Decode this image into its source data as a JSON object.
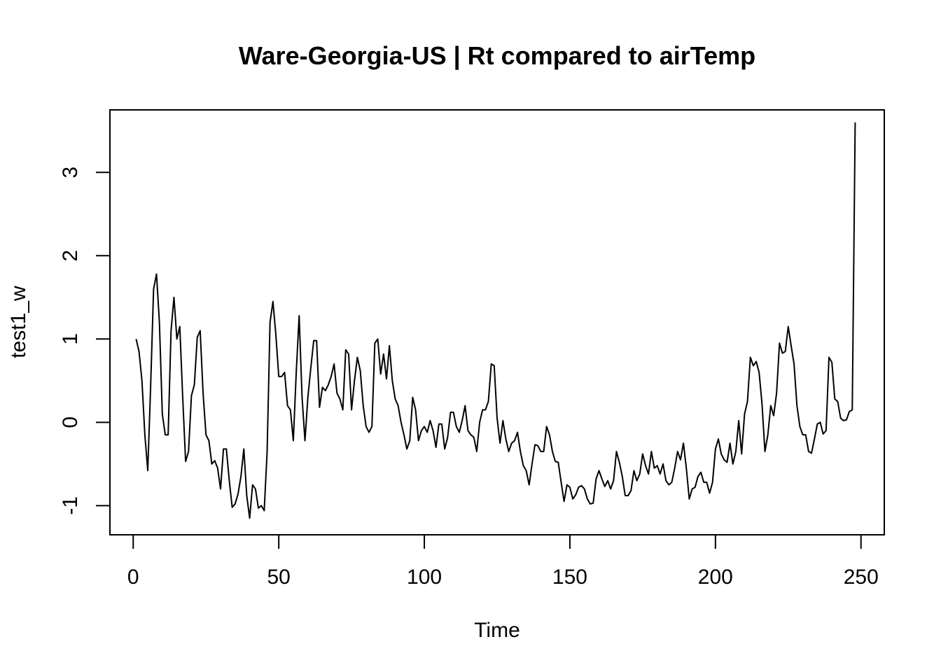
{
  "chart_data": {
    "type": "line",
    "title": "Ware-Georgia-US | Rt compared to airTemp",
    "xlabel": "Time",
    "ylabel": "test1_w",
    "xlim": [
      -8,
      258
    ],
    "ylim": [
      -1.35,
      3.75
    ],
    "x_ticks": [
      0,
      50,
      100,
      150,
      200,
      250
    ],
    "y_ticks": [
      -1,
      0,
      1,
      2,
      3
    ],
    "grid": false,
    "line_color": "#000000",
    "series": [
      {
        "x": [
          1,
          2,
          3,
          4,
          5,
          6,
          7,
          8,
          9,
          10,
          11,
          12,
          13,
          14,
          15,
          16,
          17,
          18,
          19,
          20,
          21,
          22,
          23,
          24,
          25,
          26,
          27,
          28,
          29,
          30,
          31,
          32,
          33,
          34,
          35,
          36,
          37,
          38,
          39,
          40,
          41,
          42,
          43,
          44,
          45,
          46,
          47,
          48,
          49,
          50,
          51,
          52,
          53,
          54,
          55,
          56,
          57,
          58,
          59,
          60,
          61,
          62,
          63,
          64,
          65,
          66,
          67,
          68,
          69,
          70,
          71,
          72,
          73,
          74,
          75,
          76,
          77,
          78,
          79,
          80,
          81,
          82,
          83,
          84,
          85,
          86,
          87,
          88,
          89,
          90,
          91,
          92,
          93,
          94,
          95,
          96,
          97,
          98,
          99,
          100,
          101,
          102,
          103,
          104,
          105,
          106,
          107,
          108,
          109,
          110,
          111,
          112,
          113,
          114,
          115,
          116,
          117,
          118,
          119,
          120,
          121,
          122,
          123,
          124,
          125,
          126,
          127,
          128,
          129,
          130,
          131,
          132,
          133,
          134,
          135,
          136,
          137,
          138,
          139,
          140,
          141,
          142,
          143,
          144,
          145,
          146,
          147,
          148,
          149,
          150,
          151,
          152,
          153,
          154,
          155,
          156,
          157,
          158,
          159,
          160,
          161,
          162,
          163,
          164,
          165,
          166,
          167,
          168,
          169,
          170,
          171,
          172,
          173,
          174,
          175,
          176,
          177,
          178,
          179,
          180,
          181,
          182,
          183,
          184,
          185,
          186,
          187,
          188,
          189,
          190,
          191,
          192,
          193,
          194,
          195,
          196,
          197,
          198,
          199,
          200,
          201,
          202,
          203,
          204,
          205,
          206,
          207,
          208,
          209,
          210,
          211,
          212,
          213,
          214,
          215,
          216,
          217,
          218,
          219,
          220,
          221,
          222,
          223,
          224,
          225,
          226,
          227,
          228,
          229,
          230,
          231,
          232,
          233,
          234,
          235,
          236,
          237,
          238,
          239,
          240,
          241,
          242,
          243,
          244,
          245,
          246,
          247,
          248
        ],
        "values": [
          1.0,
          0.85,
          0.5,
          -0.15,
          -0.58,
          0.45,
          1.6,
          1.78,
          1.2,
          0.1,
          -0.15,
          -0.15,
          1.1,
          1.5,
          1.0,
          1.15,
          0.3,
          -0.47,
          -0.35,
          0.32,
          0.45,
          1.02,
          1.1,
          0.35,
          -0.15,
          -0.22,
          -0.5,
          -0.46,
          -0.55,
          -0.8,
          -0.32,
          -0.32,
          -0.7,
          -1.02,
          -0.98,
          -0.86,
          -0.65,
          -0.32,
          -0.88,
          -1.15,
          -0.75,
          -0.8,
          -1.03,
          -1.0,
          -1.06,
          -0.35,
          1.2,
          1.45,
          1.05,
          0.55,
          0.55,
          0.6,
          0.2,
          0.15,
          -0.22,
          0.6,
          1.28,
          0.3,
          -0.22,
          0.3,
          0.65,
          0.98,
          0.98,
          0.18,
          0.42,
          0.38,
          0.45,
          0.55,
          0.7,
          0.35,
          0.28,
          0.15,
          0.87,
          0.82,
          0.15,
          0.5,
          0.78,
          0.62,
          0.2,
          -0.05,
          -0.12,
          -0.05,
          0.95,
          1.0,
          0.58,
          0.82,
          0.52,
          0.92,
          0.5,
          0.28,
          0.2,
          0.0,
          -0.15,
          -0.32,
          -0.22,
          0.3,
          0.15,
          -0.22,
          -0.1,
          -0.05,
          -0.12,
          0.02,
          -0.1,
          -0.3,
          -0.02,
          -0.02,
          -0.32,
          -0.18,
          0.12,
          0.12,
          -0.05,
          -0.12,
          0.02,
          0.2,
          -0.1,
          -0.15,
          -0.18,
          -0.35,
          0.0,
          0.15,
          0.15,
          0.25,
          0.7,
          0.68,
          0.05,
          -0.25,
          0.02,
          -0.2,
          -0.35,
          -0.25,
          -0.22,
          -0.12,
          -0.35,
          -0.52,
          -0.58,
          -0.75,
          -0.5,
          -0.27,
          -0.28,
          -0.35,
          -0.35,
          -0.05,
          -0.15,
          -0.35,
          -0.47,
          -0.48,
          -0.72,
          -0.95,
          -0.75,
          -0.78,
          -0.92,
          -0.87,
          -0.78,
          -0.76,
          -0.8,
          -0.92,
          -0.98,
          -0.97,
          -0.68,
          -0.58,
          -0.68,
          -0.77,
          -0.7,
          -0.8,
          -0.7,
          -0.35,
          -0.48,
          -0.65,
          -0.88,
          -0.88,
          -0.82,
          -0.58,
          -0.7,
          -0.62,
          -0.38,
          -0.52,
          -0.62,
          -0.35,
          -0.55,
          -0.52,
          -0.62,
          -0.5,
          -0.7,
          -0.75,
          -0.72,
          -0.55,
          -0.35,
          -0.45,
          -0.25,
          -0.55,
          -0.92,
          -0.8,
          -0.78,
          -0.65,
          -0.6,
          -0.72,
          -0.72,
          -0.85,
          -0.72,
          -0.32,
          -0.2,
          -0.38,
          -0.45,
          -0.48,
          -0.25,
          -0.5,
          -0.35,
          0.02,
          -0.38,
          0.1,
          0.25,
          0.78,
          0.68,
          0.73,
          0.6,
          0.22,
          -0.35,
          -0.15,
          0.2,
          0.08,
          0.35,
          0.95,
          0.83,
          0.85,
          1.15,
          0.92,
          0.7,
          0.2,
          -0.05,
          -0.15,
          -0.15,
          -0.35,
          -0.37,
          -0.2,
          -0.02,
          0.0,
          -0.14,
          -0.1,
          0.78,
          0.72,
          0.28,
          0.25,
          0.05,
          0.02,
          0.03,
          0.13,
          0.15,
          3.6
        ]
      }
    ]
  }
}
